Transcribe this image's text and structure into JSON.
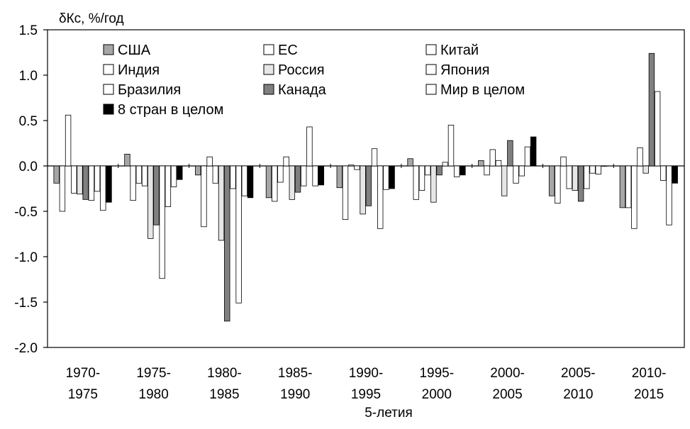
{
  "chart_data": {
    "type": "bar",
    "ylabel": "δКс, %/год",
    "xlabel": "5-летия",
    "ylim": [
      -2.0,
      1.5
    ],
    "yticks": [
      "1.5",
      "1.0",
      "0.5",
      "0.0",
      "-0.5",
      "-1.0",
      "-1.5",
      "-2.0"
    ],
    "grid": false,
    "legend_position": "top",
    "categories": [
      [
        "1970-",
        "1975"
      ],
      [
        "1975-",
        "1980"
      ],
      [
        "1980-",
        "1985"
      ],
      [
        "1985-",
        "1990"
      ],
      [
        "1990-",
        "1995"
      ],
      [
        "1995-",
        "2000"
      ],
      [
        "2000-",
        "2005"
      ],
      [
        "2005-",
        "2010"
      ],
      [
        "2010-",
        "2015"
      ]
    ],
    "series": [
      {
        "name": "США",
        "color": "#a6a6a6",
        "values": [
          -0.19,
          0.13,
          -0.1,
          -0.35,
          -0.24,
          0.08,
          0.06,
          -0.33,
          -0.46
        ]
      },
      {
        "name": "Индия",
        "color": "#ffffff",
        "values": [
          -0.5,
          -0.38,
          -0.67,
          -0.39,
          -0.59,
          -0.37,
          -0.1,
          -0.41,
          -0.46
        ]
      },
      {
        "name": "Бразилия",
        "color": "#ffffff",
        "values": [
          0.56,
          -0.19,
          0.1,
          -0.18,
          0.01,
          -0.27,
          0.18,
          0.1,
          -0.69
        ]
      },
      {
        "name": "ЕС",
        "color": "#ffffff",
        "values": [
          -0.3,
          -0.22,
          -0.19,
          0.1,
          -0.04,
          -0.1,
          0.06,
          -0.25,
          0.2
        ]
      },
      {
        "name": "Россия",
        "color": "#e6e6e6",
        "values": [
          -0.31,
          -0.8,
          -0.82,
          -0.37,
          -0.53,
          -0.4,
          -0.33,
          -0.27,
          -0.08
        ]
      },
      {
        "name": "Канада",
        "color": "#808080",
        "values": [
          -0.37,
          -0.65,
          -1.71,
          -0.29,
          -0.44,
          -0.1,
          0.28,
          -0.39,
          1.24
        ]
      },
      {
        "name": "Китай",
        "color": "#ffffff",
        "values": [
          -0.38,
          -1.24,
          -0.25,
          -0.22,
          0.19,
          0.04,
          -0.19,
          -0.25,
          0.82
        ]
      },
      {
        "name": "Япония",
        "color": "#ffffff",
        "values": [
          -0.28,
          -0.45,
          -1.51,
          0.43,
          -0.69,
          0.45,
          -0.11,
          -0.08,
          -0.16
        ]
      },
      {
        "name": "Мир в целом",
        "color": "#ffffff",
        "values": [
          -0.49,
          -0.23,
          -0.33,
          -0.22,
          -0.26,
          -0.12,
          0.21,
          -0.09,
          -0.65
        ]
      },
      {
        "name": "8 стран в целом",
        "color": "#000000",
        "values": [
          -0.4,
          -0.15,
          -0.35,
          -0.21,
          -0.25,
          -0.1,
          0.32,
          0.0,
          -0.19
        ]
      }
    ],
    "legend_order": [
      "США",
      "ЕС",
      "Китай",
      "Индия",
      "Россия",
      "Япония",
      "Бразилия",
      "Канада",
      "Мир в целом",
      "8 стран в целом"
    ]
  }
}
